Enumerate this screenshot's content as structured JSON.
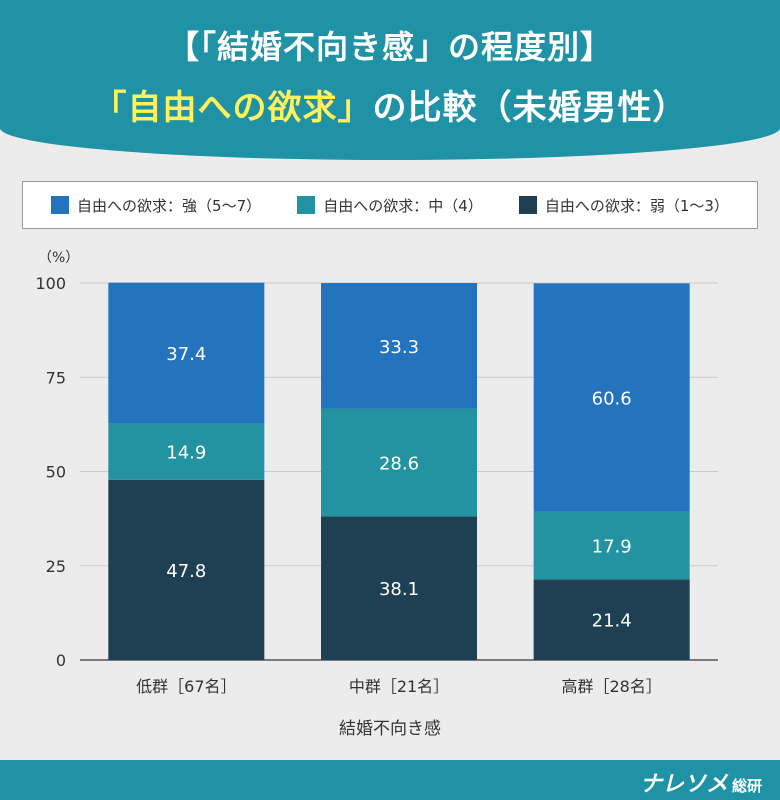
{
  "header": {
    "line1": "【「結婚不向き感」の程度別】",
    "line2_highlight": "「自由への欲求」",
    "line2_rest": "の比較（未婚男性）"
  },
  "chart_data": {
    "type": "bar",
    "stacked": true,
    "ylabel": "（%）",
    "xlabel": "結婚不向き感",
    "ylim": [
      0,
      100
    ],
    "yticks": [
      0,
      25,
      50,
      75,
      100
    ],
    "grid": true,
    "legend_position": "top",
    "categories": [
      "低群［67名］",
      "中群［21名］",
      "高群［28名］"
    ],
    "series": [
      {
        "name": "自由への欲求：弱（1〜3）",
        "color": "#1f3f52",
        "values": [
          47.8,
          38.1,
          21.4
        ]
      },
      {
        "name": "自由への欲求：中（4）",
        "color": "#2393a1",
        "values": [
          14.9,
          28.6,
          17.9
        ]
      },
      {
        "name": "自由への欲求：強（5〜7）",
        "color": "#2473bf",
        "values": [
          37.4,
          33.3,
          60.6
        ]
      }
    ]
  },
  "legend": [
    {
      "label": "自由への欲求：強（5〜7）",
      "color": "#2473bf"
    },
    {
      "label": "自由への欲求：中（4）",
      "color": "#2393a1"
    },
    {
      "label": "自由への欲求：弱（1〜3）",
      "color": "#1f3f52"
    }
  ],
  "footer": {
    "brand": "ナレソメ",
    "brand_suffix": "総研"
  }
}
